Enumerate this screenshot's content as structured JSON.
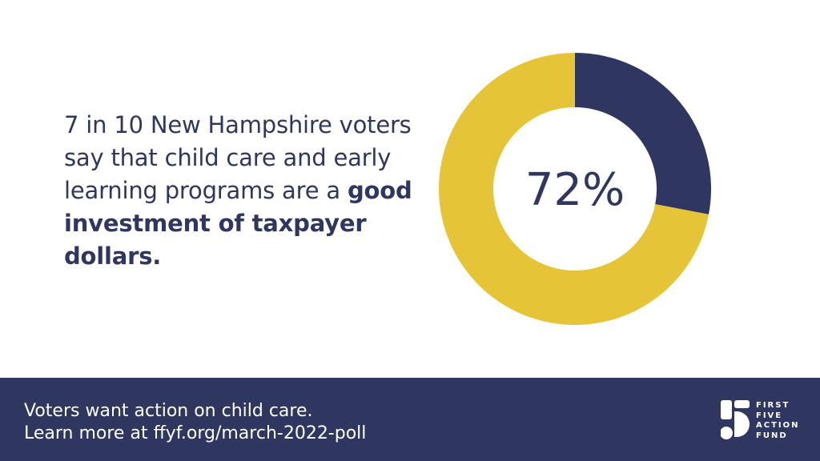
{
  "headline": {
    "normal": "7 in 10 New Hampshire voters say that child care and early learning programs are a ",
    "bold": "good investment of taxpayer dollars."
  },
  "chart_data": {
    "type": "pie",
    "donut": true,
    "center_label": "72%",
    "slices": [
      {
        "value": 72,
        "color": "#e5c437"
      },
      {
        "value": 28,
        "color": "#2f3660"
      }
    ]
  },
  "footer": {
    "line1": "Voters want action on child care.",
    "line2": "Learn more at ffyf.org/march-2022-poll"
  },
  "logo": {
    "name": "First Five Action Fund logo",
    "lines": [
      "FIRST",
      "FIVE",
      "ACTION",
      "FUND"
    ]
  },
  "colors": {
    "navy": "#2f3660",
    "gold": "#e5c437",
    "background": "#ffffff"
  }
}
